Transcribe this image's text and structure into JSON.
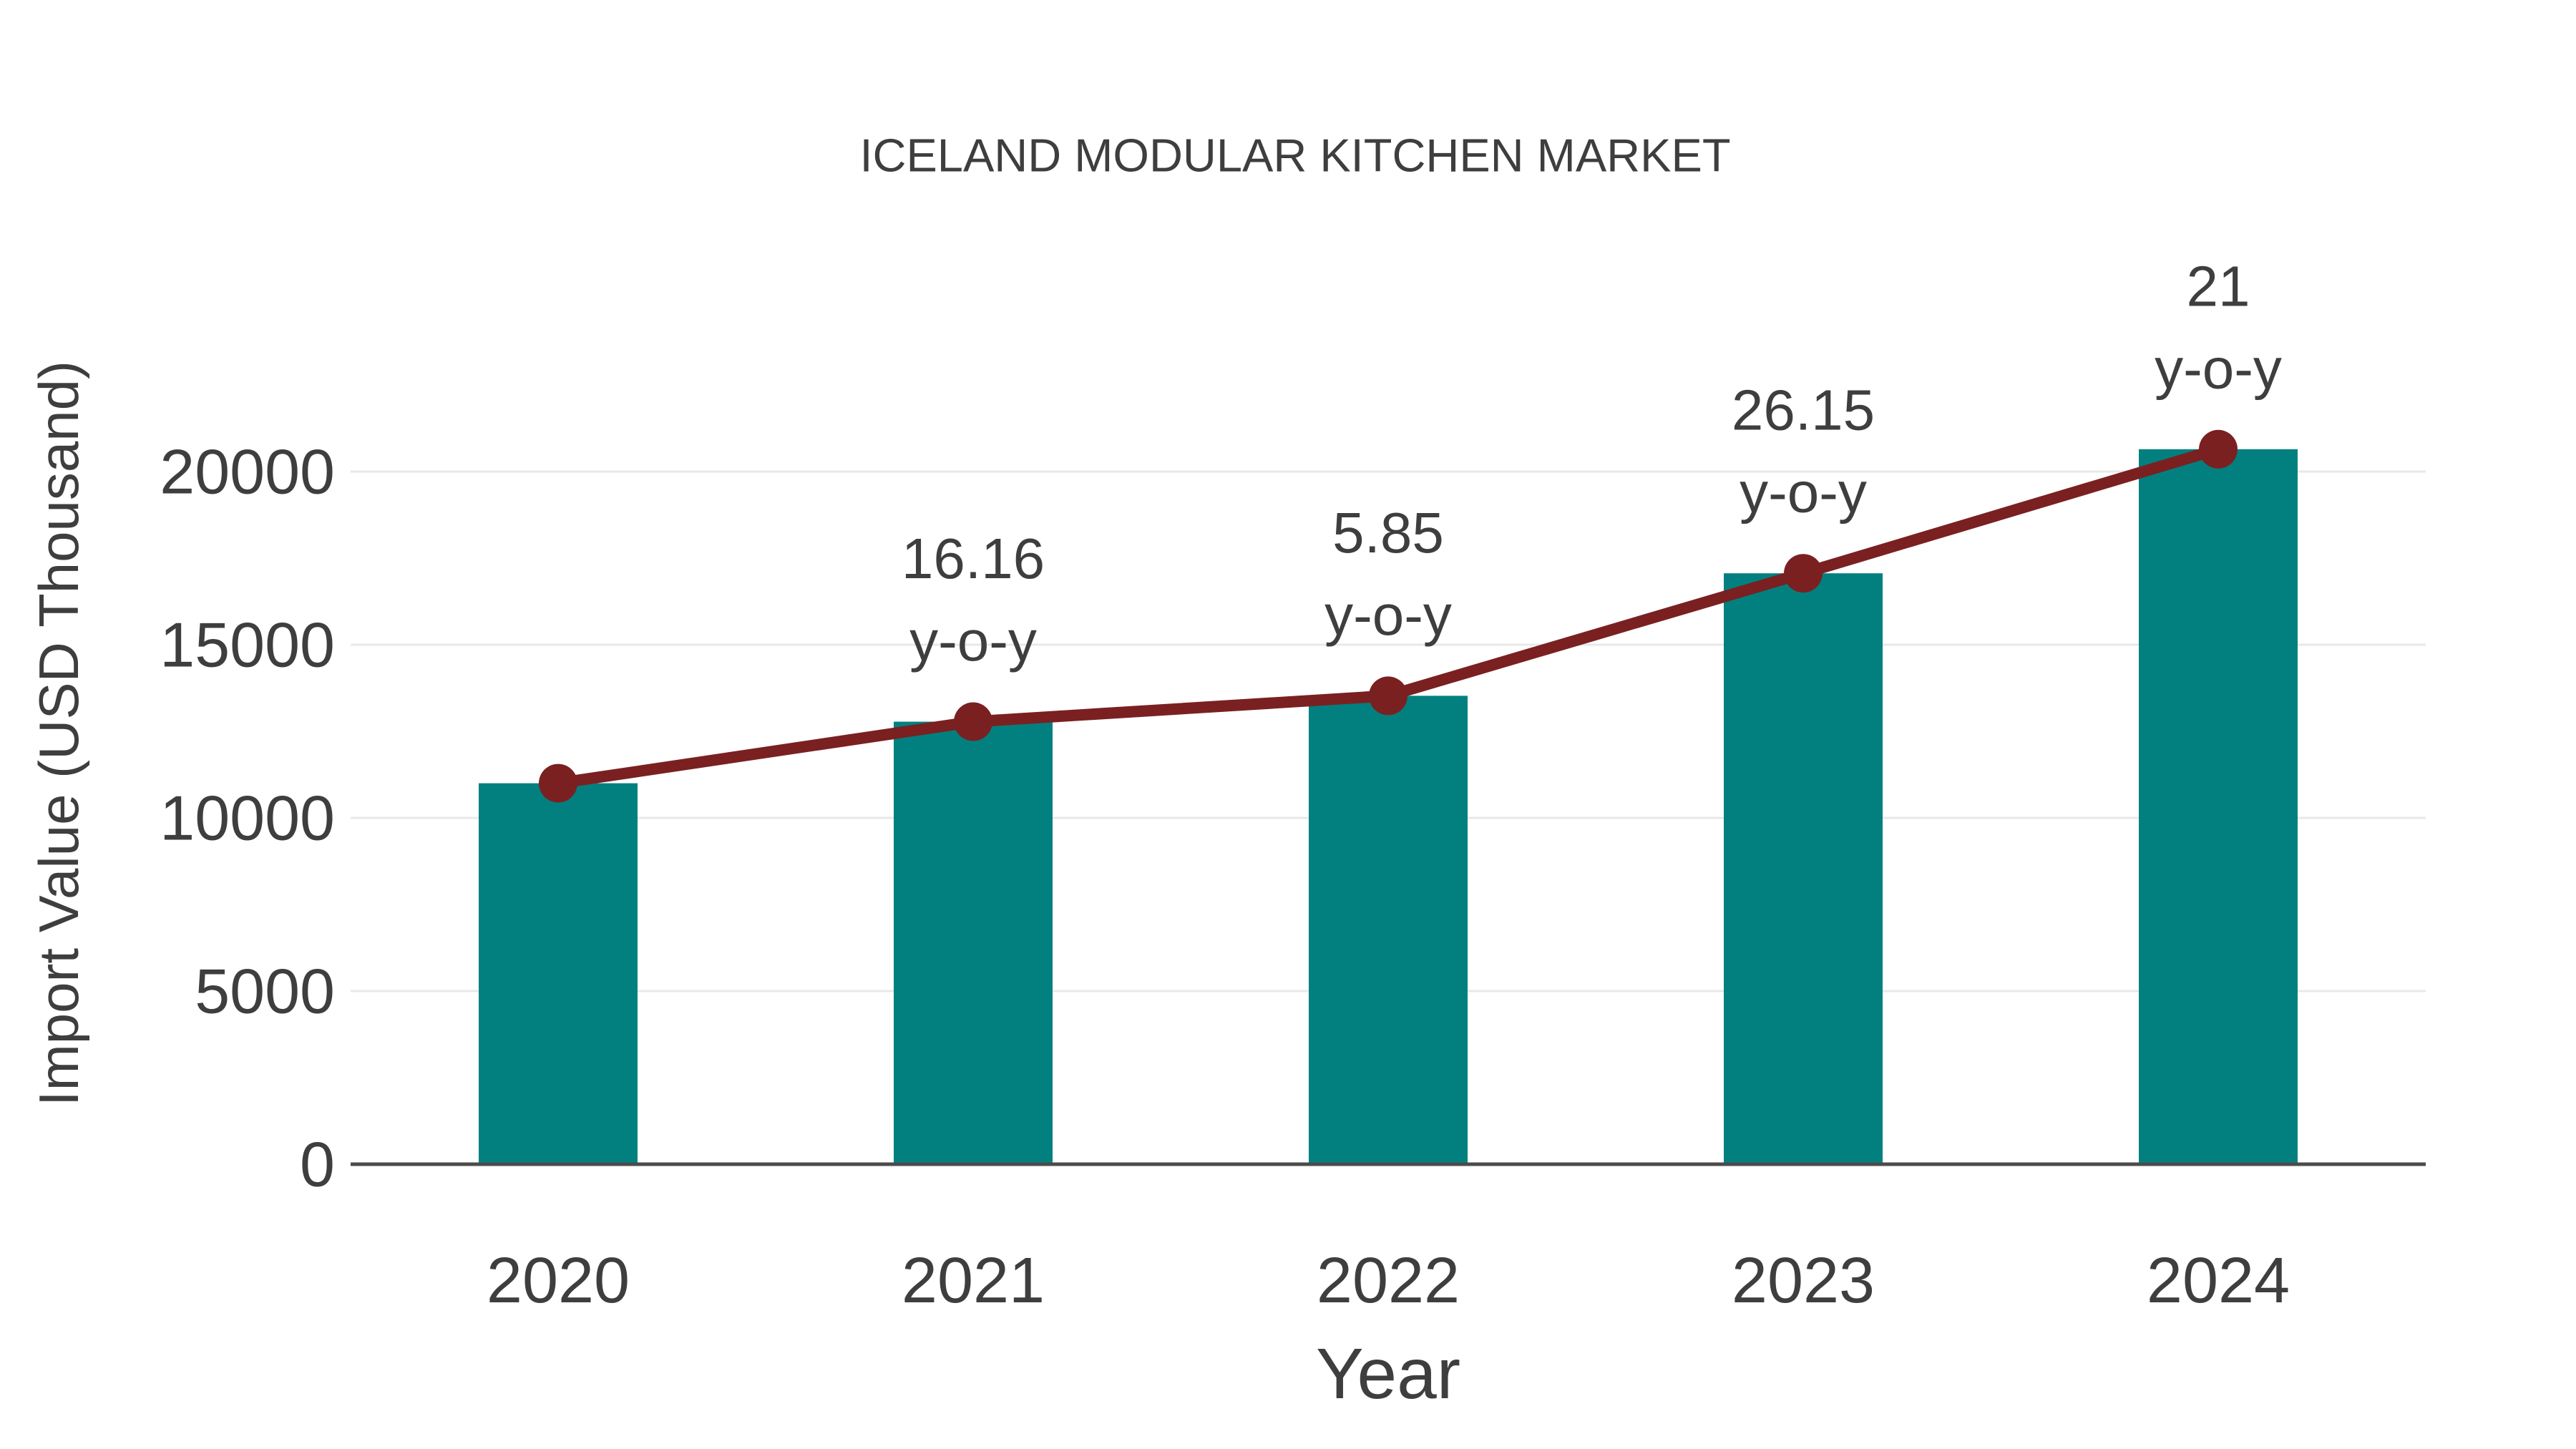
{
  "chart_data": {
    "type": "bar",
    "categories": [
      "2020",
      "2021",
      "2022",
      "2023",
      "2024"
    ],
    "series": [
      {
        "name": "Import Value (USD Thousand)",
        "type": "bar",
        "values": [
          11000,
          12778,
          13525,
          17062,
          20645
        ]
      },
      {
        "name": "Import Value trend",
        "type": "line",
        "values": [
          11000,
          12778,
          13525,
          17062,
          20645
        ]
      }
    ],
    "point_labels": [
      null,
      "16.16",
      "5.85",
      "26.15",
      "21"
    ],
    "point_label_suffix": "y-o-y",
    "title": "ICELAND MODULAR KITCHEN MARKET",
    "xlabel": "Year",
    "ylabel": "Import Value (USD Thousand)",
    "yticks": [
      0,
      5000,
      10000,
      15000,
      20000
    ],
    "ylim": [
      0,
      25000
    ],
    "grid": true,
    "legend": "none"
  },
  "colors": {
    "bar": "#028080",
    "line": "#7a2021",
    "marker": "#7a2021",
    "text": "#3e3e3e",
    "grid": "#e8e8e8",
    "axis": "#4b4b4b",
    "background": "#ffffff"
  }
}
